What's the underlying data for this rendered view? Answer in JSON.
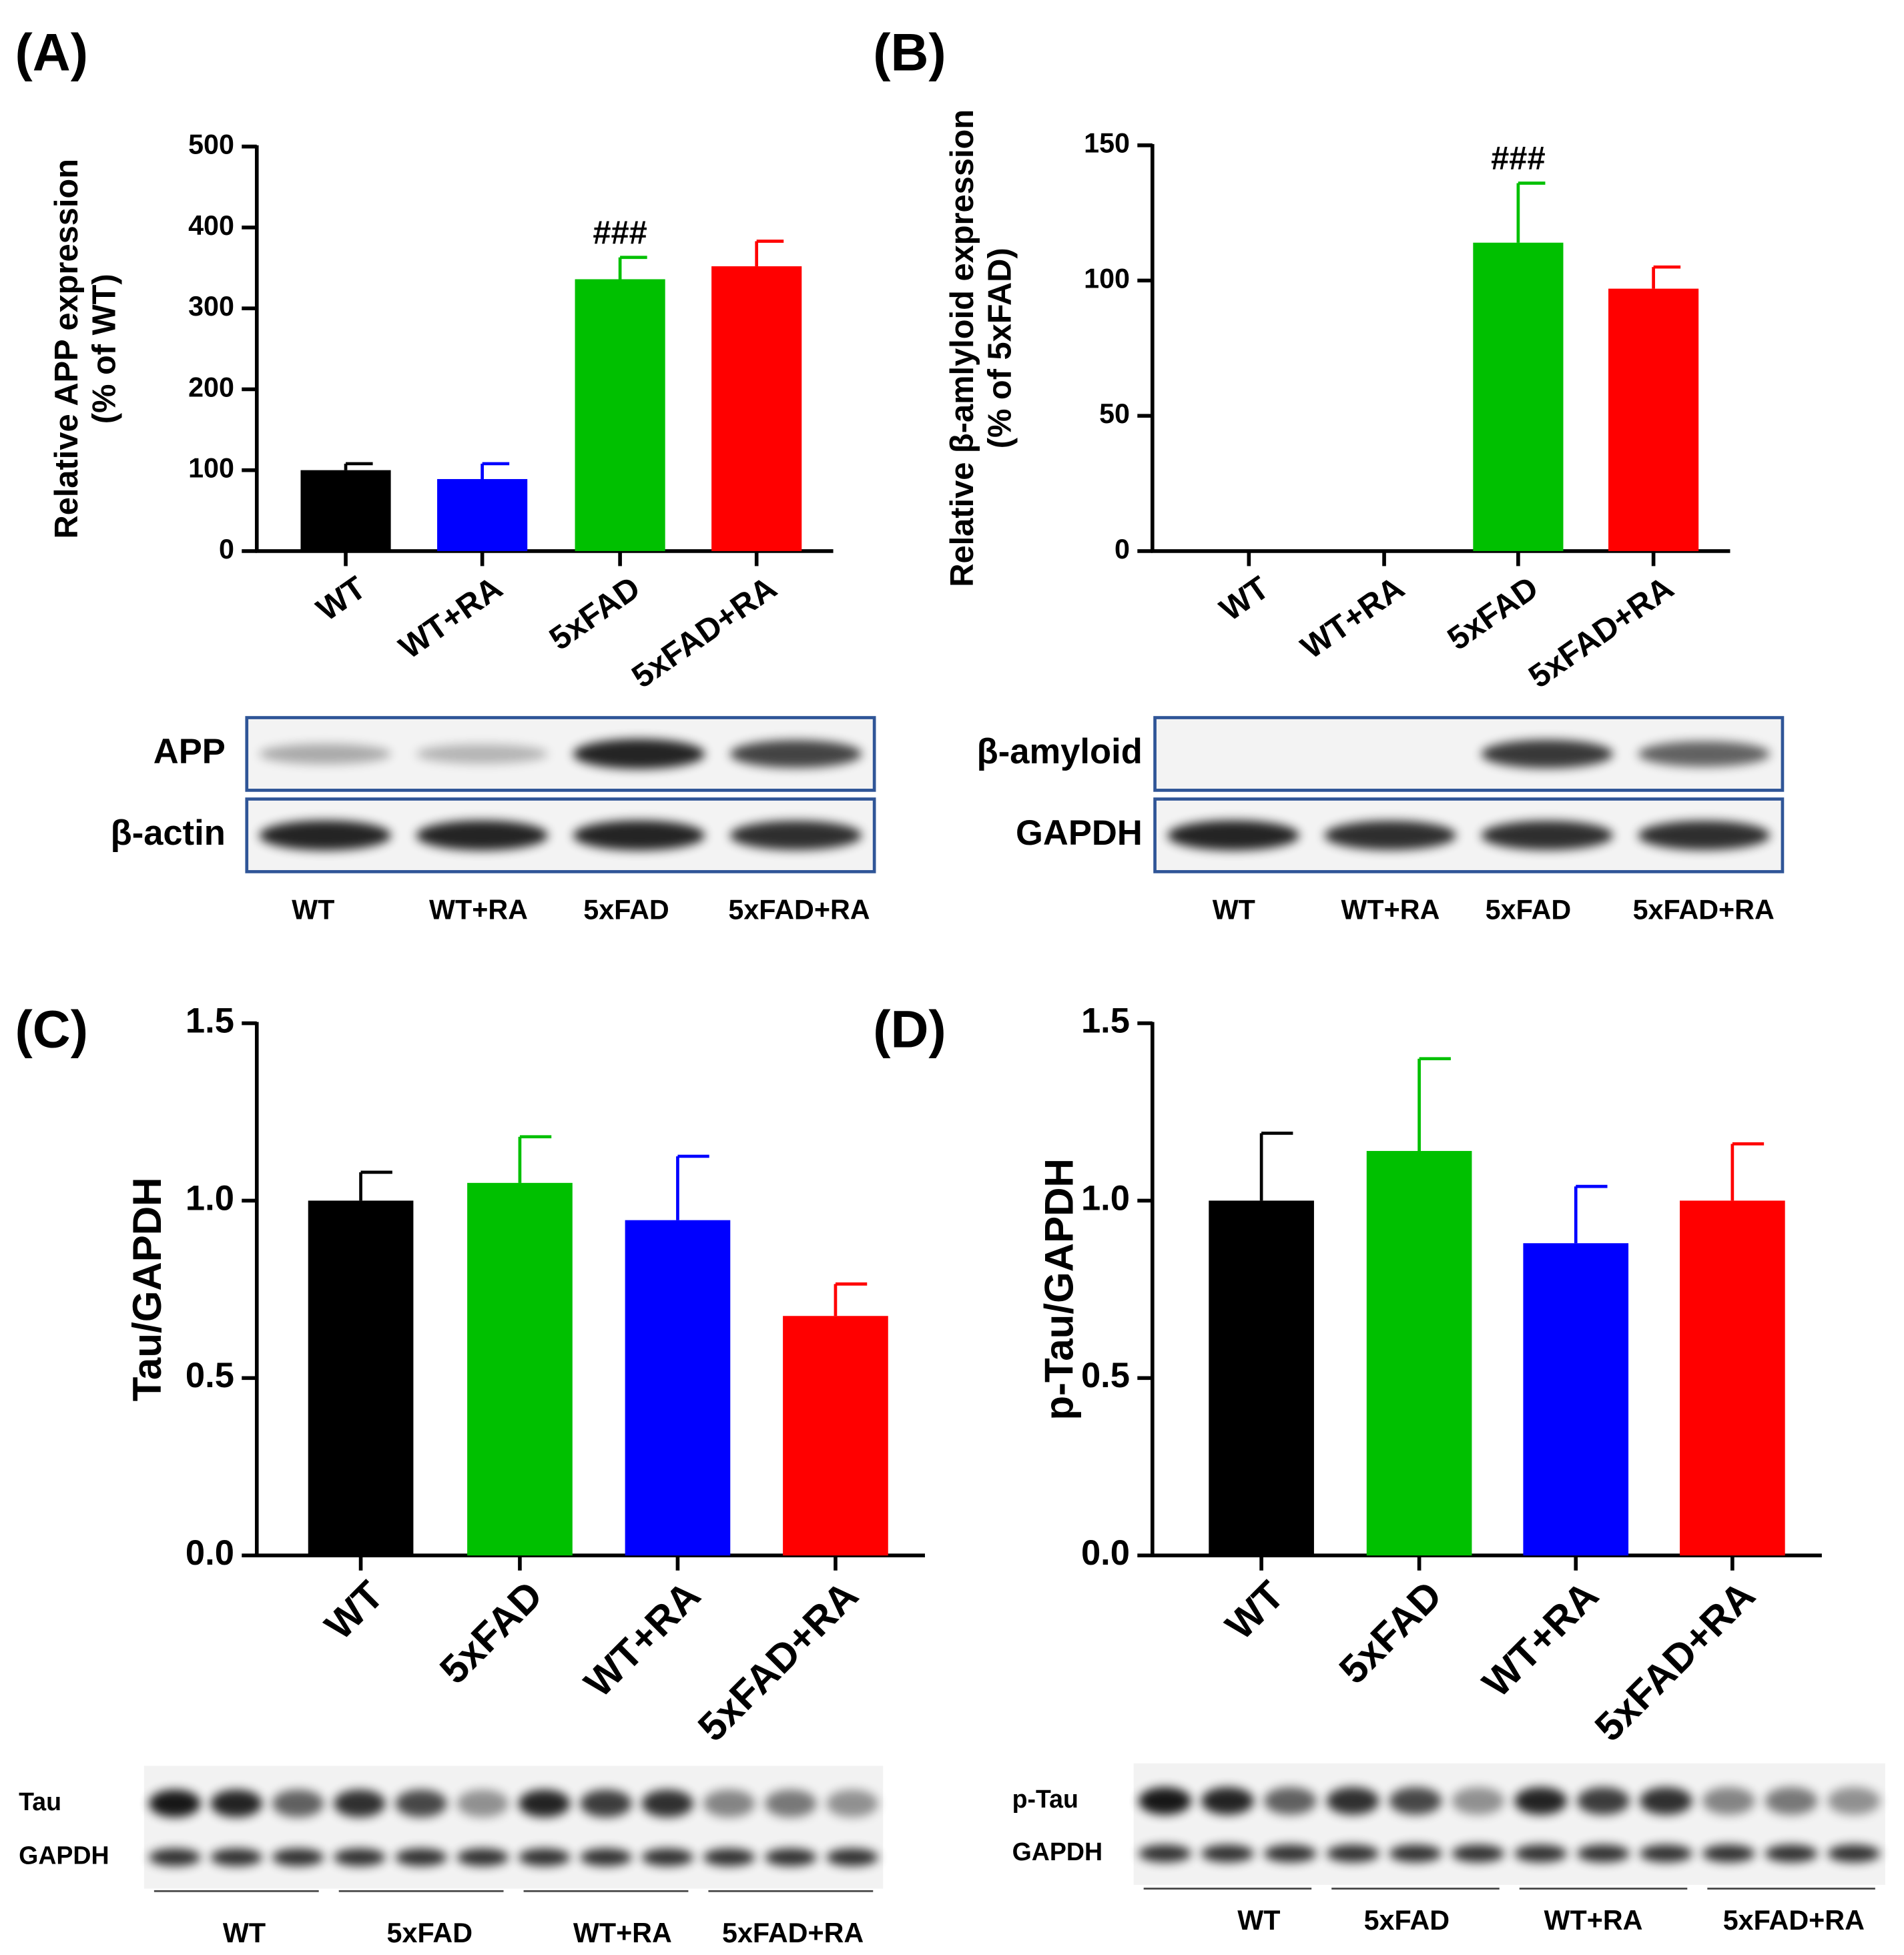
{
  "chart_data": [
    {
      "type": "bar",
      "panel": "(A)",
      "ylabel": [
        "Relative APP expression",
        "(% of WT)"
      ],
      "categories": [
        "WT",
        "WT+RA",
        "5xFAD",
        "5xFAD+RA"
      ],
      "values": [
        100,
        89,
        336,
        352
      ],
      "errors": [
        8,
        19,
        27,
        31
      ],
      "colors": [
        "#000000",
        "#0000ff",
        "#00c000",
        "#ff0000"
      ],
      "annotations": [
        null,
        null,
        "###",
        null
      ],
      "ylim": [
        0,
        500
      ],
      "yticks": [
        0,
        100,
        200,
        300,
        400,
        500
      ],
      "blot": {
        "rows": [
          "APP",
          "β-actin"
        ],
        "lanes": [
          "WT",
          "WT+RA",
          "5xFAD",
          "5xFAD+RA"
        ]
      }
    },
    {
      "type": "bar",
      "panel": "(B)",
      "ylabel": [
        "Relative β-amlyloid expression",
        "(% of 5xFAD)"
      ],
      "categories": [
        "WT",
        "WT+RA",
        "5xFAD",
        "5xFAD+RA"
      ],
      "values": [
        0,
        0,
        114,
        97
      ],
      "errors": [
        0,
        0,
        22,
        8
      ],
      "colors": [
        "#000000",
        "#0000ff",
        "#00c000",
        "#ff0000"
      ],
      "annotations": [
        null,
        null,
        "###",
        null
      ],
      "ylim": [
        0,
        150
      ],
      "yticks": [
        0,
        50,
        100,
        150
      ],
      "blot": {
        "rows": [
          "β-amyloid",
          "GAPDH"
        ],
        "lanes": [
          "WT",
          "WT+RA",
          "5xFAD",
          "5xFAD+RA"
        ]
      }
    },
    {
      "type": "bar",
      "panel": "(C)",
      "ylabel": [
        "Tau/GAPDH"
      ],
      "categories": [
        "WT",
        "5xFAD",
        "WT+RA",
        "5xFAD+RA"
      ],
      "values": [
        1.0,
        1.05,
        0.945,
        0.675
      ],
      "errors": [
        0.08,
        0.13,
        0.18,
        0.09
      ],
      "colors": [
        "#000000",
        "#00c000",
        "#0000ff",
        "#ff0000"
      ],
      "annotations": [
        null,
        null,
        null,
        null
      ],
      "ylim": [
        0,
        1.5
      ],
      "yticks": [
        {
          "value": 0,
          "label": "0.0"
        },
        0.5,
        {
          "value": 1,
          "label": "1.0"
        },
        1.5
      ],
      "blot": {
        "rows": [
          "Tau",
          "GAPDH"
        ],
        "lanes": [
          "WT",
          "5xFAD",
          "WT+RA",
          "5xFAD+RA"
        ]
      }
    },
    {
      "type": "bar",
      "panel": "(D)",
      "ylabel": [
        "p-Tau/GAPDH"
      ],
      "categories": [
        "WT",
        "5xFAD",
        "WT+RA",
        "5xFAD+RA"
      ],
      "values": [
        1.0,
        1.14,
        0.88,
        1.0
      ],
      "errors": [
        0.19,
        0.26,
        0.16,
        0.16
      ],
      "colors": [
        "#000000",
        "#00c000",
        "#0000ff",
        "#ff0000"
      ],
      "annotations": [
        null,
        null,
        null,
        null
      ],
      "ylim": [
        0,
        1.5
      ],
      "yticks": [
        {
          "value": 0,
          "label": "0.0"
        },
        0.5,
        {
          "value": 1,
          "label": "1.0"
        },
        1.5
      ],
      "blot": {
        "rows": [
          "p-Tau",
          "GAPDH"
        ],
        "lanes": [
          "WT",
          "5xFAD",
          "WT+RA",
          "5xFAD+RA"
        ]
      }
    }
  ]
}
